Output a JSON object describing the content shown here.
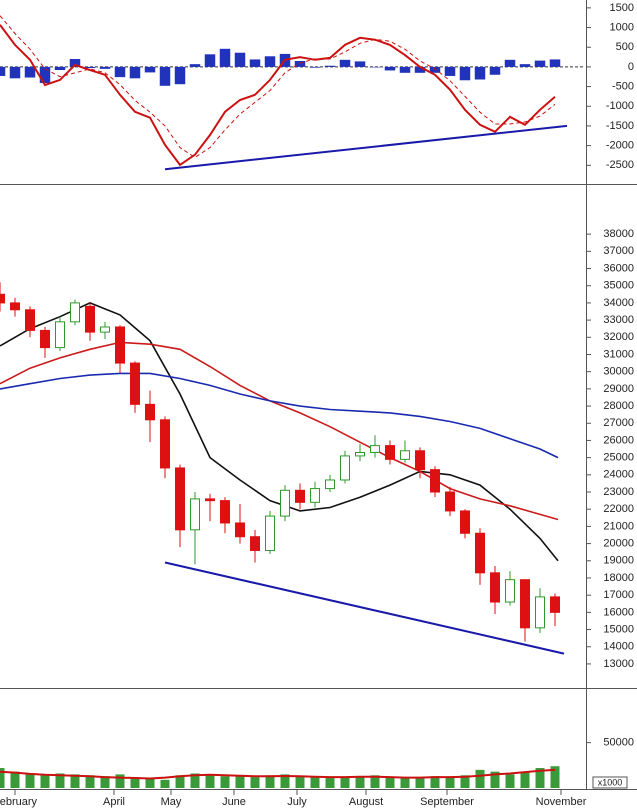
{
  "chart_data": [
    {
      "type": "macd",
      "x": [
        0,
        5,
        10,
        15,
        20,
        25,
        30,
        35,
        40,
        45,
        50,
        55,
        60,
        65,
        70,
        75,
        80,
        85,
        90,
        95,
        100,
        105,
        110,
        115,
        120,
        125,
        130,
        135,
        140,
        145,
        150,
        155,
        160,
        165,
        170,
        175,
        180,
        185
      ],
      "macd": [
        1070,
        560,
        180,
        -460,
        -330,
        50,
        -80,
        -200,
        -710,
        -1140,
        -1290,
        -1980,
        -2490,
        -2230,
        -1730,
        -1140,
        -840,
        -710,
        -330,
        180,
        250,
        180,
        230,
        560,
        740,
        690,
        560,
        300,
        0,
        -200,
        -580,
        -1090,
        -1470,
        -1650,
        -1270,
        -1470,
        -1090,
        -760
      ],
      "macd_color": "#cc1111",
      "signal": [
        1300,
        850,
        450,
        -50,
        -250,
        -150,
        -50,
        -150,
        -450,
        -850,
        -1150,
        -1500,
        -2050,
        -2300,
        -2050,
        -1600,
        -1200,
        -900,
        -600,
        -150,
        100,
        200,
        200,
        380,
        600,
        700,
        650,
        450,
        150,
        -50,
        -350,
        -750,
        -1150,
        -1450,
        -1450,
        -1400,
        -1250,
        -950
      ],
      "signal_color": "#cc1111",
      "histogram": [
        -230,
        -290,
        -270,
        -410,
        -80,
        200,
        -30,
        -50,
        -260,
        -290,
        -140,
        -480,
        -440,
        70,
        320,
        460,
        360,
        190,
        270,
        330,
        150,
        -20,
        30,
        180,
        140,
        -10,
        -90,
        -150,
        -150,
        -150,
        -230,
        -340,
        -320,
        -200,
        180,
        70,
        160,
        190
      ],
      "histogram_color": "#2233bb",
      "trendline": {
        "x": [
          55,
          189
        ],
        "values": [
          -2600,
          -1500
        ],
        "color": "#1a1aaa"
      },
      "zero_line": true,
      "xlim": [
        0,
        195
      ],
      "ylim": [
        -2950,
        1700
      ],
      "yticks": [
        1500,
        1000,
        500,
        0,
        -500,
        -1000,
        -1500,
        -2000,
        -2500
      ]
    },
    {
      "type": "candlestick",
      "x": [
        0,
        5,
        10,
        15,
        20,
        25,
        30,
        35,
        40,
        45,
        50,
        55,
        60,
        65,
        70,
        75,
        80,
        85,
        90,
        95,
        100,
        105,
        110,
        115,
        120,
        125,
        130,
        135,
        140,
        145,
        150,
        155,
        160,
        165,
        170,
        175,
        180,
        185
      ],
      "open": [
        34500,
        34000,
        33600,
        32400,
        31400,
        32900,
        33800,
        32300,
        32600,
        30500,
        28100,
        27200,
        24400,
        20800,
        22600,
        22500,
        21200,
        20400,
        19600,
        21600,
        23100,
        22400,
        23200,
        23700,
        25100,
        25300,
        25700,
        24900,
        25400,
        24300,
        23000,
        21900,
        20600,
        18300,
        16600,
        17900,
        15100,
        16900
      ],
      "high": [
        35200,
        34300,
        33800,
        32600,
        33200,
        34200,
        34000,
        32900,
        32700,
        30600,
        28900,
        27400,
        24600,
        23000,
        22900,
        22700,
        22300,
        20800,
        21900,
        23400,
        23500,
        23600,
        24000,
        25400,
        25800,
        26300,
        26000,
        26000,
        25600,
        24500,
        23300,
        22000,
        20900,
        18700,
        18400,
        17900,
        17400,
        17100
      ],
      "low": [
        33500,
        33200,
        32000,
        30800,
        31200,
        32700,
        31800,
        31900,
        29900,
        27600,
        25900,
        23800,
        19800,
        18800,
        21300,
        20600,
        20000,
        18900,
        19400,
        21300,
        22000,
        22100,
        23000,
        23500,
        24800,
        25000,
        24600,
        24700,
        23800,
        22700,
        21600,
        20300,
        17600,
        15900,
        16400,
        14300,
        14800,
        15200
      ],
      "close": [
        34000,
        33600,
        32400,
        31400,
        32900,
        34000,
        32300,
        32600,
        30500,
        28100,
        27200,
        24400,
        20800,
        22600,
        22500,
        21200,
        20400,
        19600,
        21600,
        23100,
        22400,
        23200,
        23700,
        25100,
        25300,
        25700,
        24900,
        25400,
        24300,
        23000,
        21900,
        20600,
        18300,
        16600,
        17900,
        15100,
        16900,
        16000
      ],
      "up_color": "#2e9a2e",
      "down_color": "#dd1111",
      "moving_averages": [
        {
          "x": [
            0,
            10,
            20,
            30,
            40,
            50,
            60,
            70,
            80,
            90,
            100,
            110,
            120,
            130,
            140,
            150,
            160,
            170,
            180,
            186
          ],
          "values": [
            31500,
            32500,
            33200,
            34000,
            33300,
            31800,
            28700,
            25000,
            23700,
            22500,
            21900,
            22100,
            22700,
            23400,
            24200,
            24000,
            23400,
            22000,
            20300,
            19000
          ],
          "color": "#111111"
        },
        {
          "x": [
            0,
            10,
            20,
            30,
            40,
            50,
            60,
            70,
            80,
            90,
            100,
            110,
            120,
            130,
            140,
            150,
            160,
            170,
            180,
            186
          ],
          "values": [
            29300,
            30200,
            30800,
            31300,
            31700,
            31600,
            31300,
            30300,
            29200,
            28300,
            27600,
            26800,
            25900,
            25000,
            24200,
            23200,
            22600,
            22200,
            21700,
            21400
          ],
          "color": "#cc1a1a"
        },
        {
          "x": [
            0,
            10,
            20,
            30,
            40,
            50,
            60,
            70,
            80,
            90,
            100,
            110,
            120,
            130,
            140,
            150,
            160,
            170,
            180,
            186
          ],
          "values": [
            29000,
            29300,
            29600,
            29800,
            29900,
            29900,
            29600,
            29200,
            28700,
            28300,
            28000,
            27800,
            27700,
            27600,
            27400,
            27100,
            26700,
            26100,
            25500,
            25000
          ],
          "color": "#1a2ab0"
        }
      ],
      "trendline": {
        "x": [
          55,
          188
        ],
        "values": [
          18900,
          13600
        ],
        "color": "#1a1aaa"
      },
      "xlim": [
        0,
        195
      ],
      "ylim": [
        11600,
        40800
      ],
      "yticks": [
        13000,
        14000,
        15000,
        16000,
        17000,
        18000,
        19000,
        20000,
        21000,
        22000,
        23000,
        24000,
        25000,
        26000,
        27000,
        28000,
        29000,
        30000,
        31000,
        32000,
        33000,
        34000,
        35000,
        36000,
        37000,
        38000
      ]
    },
    {
      "type": "bar",
      "x": [
        0,
        5,
        10,
        15,
        20,
        25,
        30,
        35,
        40,
        45,
        50,
        55,
        60,
        65,
        70,
        75,
        80,
        85,
        90,
        95,
        100,
        105,
        110,
        115,
        120,
        125,
        130,
        135,
        140,
        145,
        150,
        155,
        160,
        165,
        170,
        175,
        180,
        185
      ],
      "values": [
        22000,
        18000,
        15000,
        14000,
        16000,
        15000,
        14000,
        13000,
        15000,
        12000,
        11000,
        9000,
        14000,
        16000,
        15000,
        13000,
        14000,
        12000,
        14000,
        15000,
        13000,
        12000,
        11000,
        12000,
        13000,
        14000,
        12000,
        11000,
        12000,
        13000,
        12000,
        14000,
        20000,
        18000,
        15000,
        17000,
        22000,
        24000
      ],
      "color": "#3a9a3a",
      "average": {
        "values": [
          18000,
          17000,
          15500,
          14500,
          14000,
          13500,
          13000,
          12000,
          11500,
          11000,
          10500,
          11500,
          13000,
          14000,
          14500,
          14000,
          13500,
          13000,
          13000,
          13200,
          13000,
          12500,
          12000,
          12000,
          12500,
          12500,
          12000,
          11500,
          11500,
          12000,
          12000,
          12500,
          13500,
          15000,
          16000,
          17500,
          19000,
          20000
        ],
        "color": "#cc1111"
      },
      "unit_label": "x1000",
      "xlim": [
        0,
        195
      ],
      "ylim": [
        0,
        108000
      ],
      "yticks": [
        50000
      ],
      "xticks": [
        {
          "value": 5,
          "label": "February"
        },
        {
          "value": 38,
          "label": "April"
        },
        {
          "value": 57,
          "label": "May"
        },
        {
          "value": 78,
          "label": "June"
        },
        {
          "value": 99,
          "label": "July"
        },
        {
          "value": 122,
          "label": "August"
        },
        {
          "value": 149,
          "label": "September"
        },
        {
          "value": 187,
          "label": "November"
        }
      ]
    }
  ]
}
